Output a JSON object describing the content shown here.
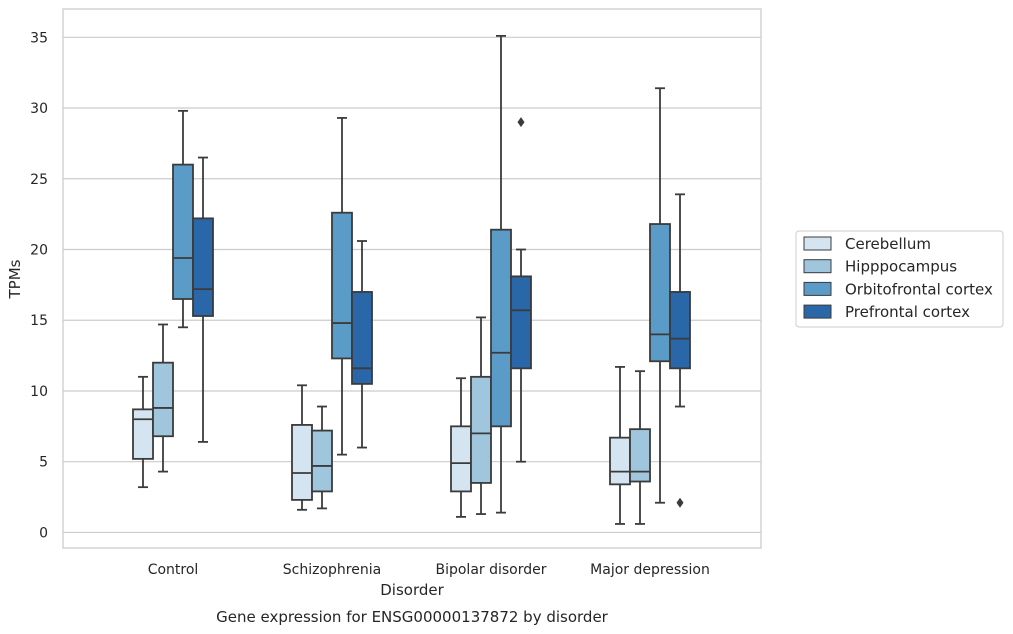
{
  "chart_data": {
    "type": "box",
    "title": "",
    "caption": "Gene expression for ENSG00000137872 by disorder",
    "xlabel": "Disorder",
    "ylabel": "TPMs",
    "ylim": [
      -1.1,
      37
    ],
    "yticks": [
      0,
      5,
      10,
      15,
      20,
      25,
      30,
      35
    ],
    "grid": "horizontal",
    "legend_position": "right",
    "categories": [
      "Control",
      "Schizophrenia",
      "Bipolar disorder",
      "Major depression"
    ],
    "series": [
      {
        "name": "Cerebellum",
        "color": "#d4e4f1",
        "boxes": [
          {
            "whisker_low": 3.2,
            "q1": 5.2,
            "median": 8.0,
            "q3": 8.7,
            "whisker_high": 11.0,
            "outliers": []
          },
          {
            "whisker_low": 1.6,
            "q1": 2.3,
            "median": 4.2,
            "q3": 7.6,
            "whisker_high": 10.4,
            "outliers": []
          },
          {
            "whisker_low": 1.1,
            "q1": 2.9,
            "median": 4.9,
            "q3": 7.5,
            "whisker_high": 10.9,
            "outliers": []
          },
          {
            "whisker_low": 0.6,
            "q1": 3.4,
            "median": 4.3,
            "q3": 6.7,
            "whisker_high": 11.7,
            "outliers": []
          }
        ]
      },
      {
        "name": "Hipppocampus",
        "color": "#9fc6dd",
        "boxes": [
          {
            "whisker_low": 4.3,
            "q1": 6.8,
            "median": 8.8,
            "q3": 12.0,
            "whisker_high": 14.7,
            "outliers": []
          },
          {
            "whisker_low": 1.7,
            "q1": 2.9,
            "median": 4.7,
            "q3": 7.2,
            "whisker_high": 8.9,
            "outliers": []
          },
          {
            "whisker_low": 1.3,
            "q1": 3.5,
            "median": 7.0,
            "q3": 11.0,
            "whisker_high": 15.2,
            "outliers": []
          },
          {
            "whisker_low": 0.6,
            "q1": 3.6,
            "median": 4.3,
            "q3": 7.3,
            "whisker_high": 11.4,
            "outliers": []
          }
        ]
      },
      {
        "name": "Orbitofrontal cortex",
        "color": "#5b9bc8",
        "boxes": [
          {
            "whisker_low": 14.5,
            "q1": 16.5,
            "median": 19.4,
            "q3": 26.0,
            "whisker_high": 29.8,
            "outliers": []
          },
          {
            "whisker_low": 5.5,
            "q1": 12.3,
            "median": 14.8,
            "q3": 22.6,
            "whisker_high": 29.3,
            "outliers": []
          },
          {
            "whisker_low": 1.4,
            "q1": 7.5,
            "median": 12.7,
            "q3": 21.4,
            "whisker_high": 35.1,
            "outliers": []
          },
          {
            "whisker_low": 2.1,
            "q1": 12.1,
            "median": 14.0,
            "q3": 21.8,
            "whisker_high": 31.4,
            "outliers": []
          }
        ]
      },
      {
        "name": "Prefrontal cortex",
        "color": "#2a67a8",
        "boxes": [
          {
            "whisker_low": 6.4,
            "q1": 15.3,
            "median": 17.2,
            "q3": 22.2,
            "whisker_high": 26.5,
            "outliers": []
          },
          {
            "whisker_low": 6.0,
            "q1": 10.5,
            "median": 11.6,
            "q3": 17.0,
            "whisker_high": 20.6,
            "outliers": []
          },
          {
            "whisker_low": 5.0,
            "q1": 11.6,
            "median": 15.7,
            "q3": 18.1,
            "whisker_high": 20.0,
            "outliers": [
              29.0
            ]
          },
          {
            "whisker_low": 8.9,
            "q1": 11.6,
            "median": 13.7,
            "q3": 17.0,
            "whisker_high": 23.9,
            "outliers": [
              2.1
            ]
          }
        ]
      }
    ]
  }
}
